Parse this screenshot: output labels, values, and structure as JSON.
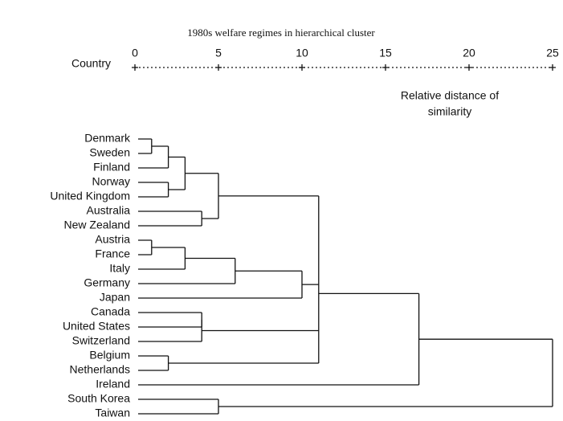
{
  "chart_data": {
    "type": "dendrogram",
    "title": "1980s welfare regimes in hierarchical cluster",
    "axis_label": "Country",
    "annotation": [
      "Relative distance of",
      "similarity"
    ],
    "xlim": [
      0,
      25
    ],
    "xticks": [
      0,
      5,
      10,
      15,
      20,
      25
    ],
    "leaves": [
      "Denmark",
      "Sweden",
      "Finland",
      "Norway",
      "United Kingdom",
      "Australia",
      "New Zealand",
      "Austria",
      "France",
      "Italy",
      "Germany",
      "Japan",
      "Canada",
      "United States",
      "Switzerland",
      "Belgium",
      "Netherlands",
      "Ireland",
      "South Korea",
      "Taiwan"
    ],
    "merges": [
      {
        "children": [
          0,
          1
        ],
        "distance": 1
      },
      {
        "children": [
          20,
          2
        ],
        "distance": 2
      },
      {
        "children": [
          3,
          4
        ],
        "distance": 2
      },
      {
        "children": [
          21,
          22
        ],
        "distance": 3
      },
      {
        "children": [
          5,
          6
        ],
        "distance": 4
      },
      {
        "children": [
          23,
          24
        ],
        "distance": 5
      },
      {
        "children": [
          7,
          8
        ],
        "distance": 1
      },
      {
        "children": [
          26,
          9
        ],
        "distance": 3
      },
      {
        "children": [
          27,
          10
        ],
        "distance": 6
      },
      {
        "children": [
          28,
          11
        ],
        "distance": 10
      },
      {
        "children": [
          12,
          13
        ],
        "distance": 4
      },
      {
        "children": [
          30,
          14
        ],
        "distance": 4
      },
      {
        "children": [
          15,
          16
        ],
        "distance": 2
      },
      {
        "children": [
          25,
          29,
          31,
          32
        ],
        "distance": 11
      },
      {
        "children": [
          33,
          17
        ],
        "distance": 17
      },
      {
        "children": [
          18,
          19
        ],
        "distance": 5
      },
      {
        "children": [
          34,
          35
        ],
        "distance": 25
      }
    ],
    "color": "#111111"
  }
}
